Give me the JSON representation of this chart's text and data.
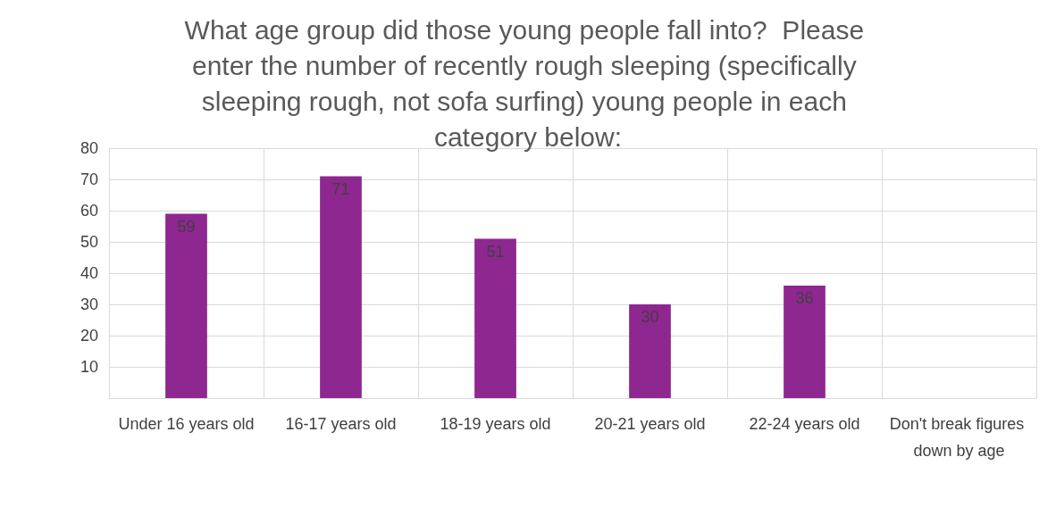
{
  "chart_data": {
    "type": "bar",
    "title": "What age group did those young people fall into?  Please enter the number of recently rough sleeping (specifically sleeping rough, not sofa surfing) young people in each category below:",
    "categories": [
      "Under 16 years old",
      "16-17 years old",
      "18-19 years old",
      "20-21 years old",
      "22-24 years old",
      "Don't break figures down by age"
    ],
    "values": [
      59,
      71,
      51,
      30,
      36,
      null
    ],
    "color": "#8e278f",
    "ylim": [
      0,
      80
    ],
    "yticks": [
      {
        "value": 0,
        "label": null
      },
      10,
      20,
      30,
      40,
      50,
      60,
      70,
      80
    ],
    "grid": true,
    "data_labels": true
  }
}
